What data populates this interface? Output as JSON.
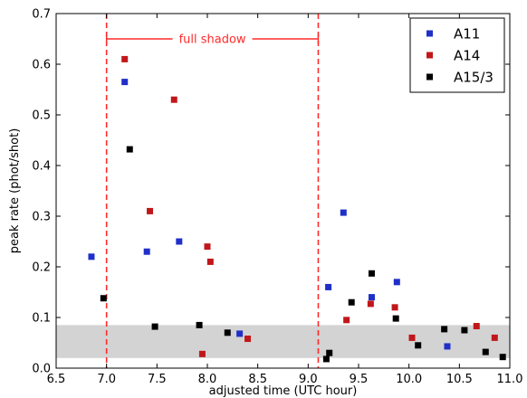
{
  "chart_data": {
    "type": "scatter",
    "xlabel": "adjusted time (UTC hour)",
    "ylabel": "peak rate (phot/shot)",
    "xlim": [
      6.5,
      11.0
    ],
    "ylim": [
      0.0,
      0.7
    ],
    "xticks": [
      "6.5",
      "7.0",
      "7.5",
      "8.0",
      "8.5",
      "9.0",
      "9.5",
      "10.0",
      "10.5",
      "11.0"
    ],
    "yticks": [
      "0.0",
      "0.1",
      "0.2",
      "0.3",
      "0.4",
      "0.5",
      "0.6",
      "0.7"
    ],
    "grid": false,
    "legend_position": "top-right",
    "shaded_band": {
      "y_from": 0.02,
      "y_to": 0.085,
      "color": "#d3d3d3"
    },
    "vertical_lines": [
      {
        "x": 7.0,
        "color": "#ff2a2a",
        "style": "dashed"
      },
      {
        "x": 9.1,
        "color": "#ff2a2a",
        "style": "dashed"
      }
    ],
    "annotation": {
      "text": "full shadow",
      "x_from": 7.0,
      "x_to": 9.1,
      "y": 0.65,
      "color": "#ff2a2a"
    },
    "series": [
      {
        "name": "A11",
        "color": "#1f2fc8",
        "x": [
          6.85,
          7.18,
          7.4,
          7.72,
          8.32,
          9.2,
          9.35,
          9.63,
          9.88,
          10.38
        ],
        "y": [
          0.22,
          0.565,
          0.23,
          0.25,
          0.068,
          0.16,
          0.307,
          0.14,
          0.17,
          0.043
        ]
      },
      {
        "name": "A14",
        "color": "#c0171b",
        "x": [
          7.18,
          7.43,
          7.67,
          7.95,
          8.0,
          8.03,
          8.4,
          9.38,
          9.62,
          9.86,
          10.03,
          10.67,
          10.85
        ],
        "y": [
          0.61,
          0.31,
          0.53,
          0.028,
          0.24,
          0.21,
          0.058,
          0.095,
          0.127,
          0.12,
          0.06,
          0.083,
          0.06
        ]
      },
      {
        "name": "A15/3",
        "color": "#000000",
        "x": [
          6.97,
          7.23,
          7.48,
          7.92,
          8.2,
          9.18,
          9.21,
          9.43,
          9.63,
          9.87,
          10.09,
          10.35,
          10.55,
          10.76,
          10.93
        ],
        "y": [
          0.138,
          0.432,
          0.082,
          0.085,
          0.07,
          0.018,
          0.03,
          0.13,
          0.187,
          0.098,
          0.045,
          0.077,
          0.075,
          0.032,
          0.022
        ]
      }
    ]
  }
}
